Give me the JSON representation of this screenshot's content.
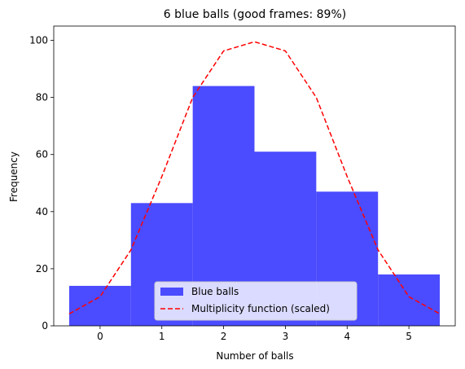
{
  "chart_data": {
    "type": "bar",
    "title": "6 blue balls (good frames: 89%)",
    "xlabel": "Number of balls",
    "ylabel": "Frequency",
    "xlim": [
      -0.75,
      5.75
    ],
    "ylim": [
      0,
      105
    ],
    "xticks": [
      0,
      1,
      2,
      3,
      4,
      5
    ],
    "yticks": [
      0,
      20,
      40,
      60,
      80,
      100
    ],
    "grid": false,
    "legend_position": "lower-center",
    "series": [
      {
        "name": "Blue balls",
        "kind": "histogram",
        "color": "#4b4bff",
        "categories": [
          0,
          1,
          2,
          3,
          4,
          5
        ],
        "values": [
          14,
          43,
          84,
          61,
          47,
          18
        ]
      },
      {
        "name": "Multiplicity function (scaled)",
        "kind": "line",
        "style": "dashed",
        "color": "#ff0000",
        "x": [
          -0.5,
          0,
          0.5,
          1,
          1.5,
          2,
          2.5,
          3,
          3.5,
          4,
          4.5,
          5,
          5.5
        ],
        "y": [
          4.2,
          10.2,
          26.6,
          52.3,
          80.0,
          96.3,
          99.5,
          96.3,
          80.0,
          52.3,
          26.6,
          10.2,
          4.2
        ]
      }
    ]
  }
}
